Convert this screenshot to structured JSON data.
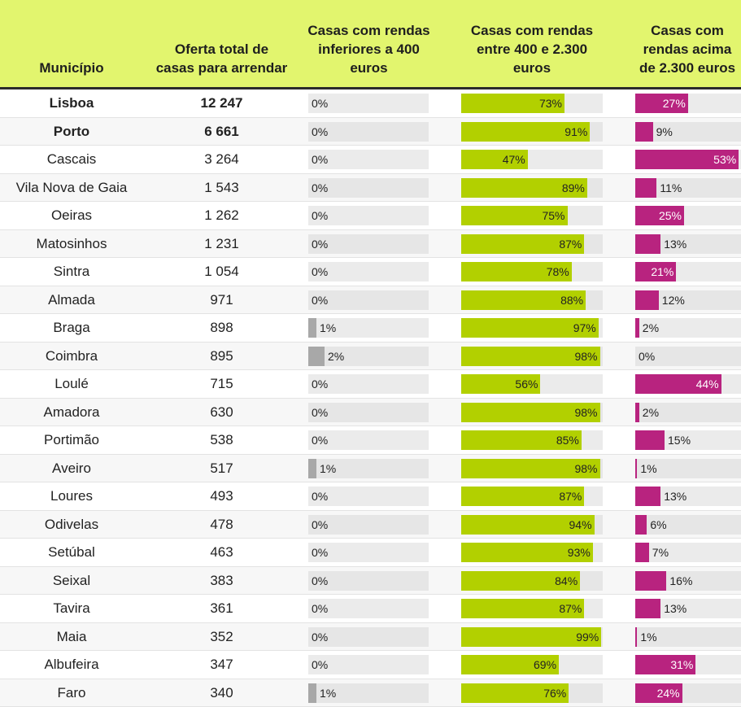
{
  "colors": {
    "header_bg": "#e2f56e",
    "low": "#a8a8a8",
    "mid": "#b2d000",
    "high": "#b8237f",
    "track": "#ebebeb"
  },
  "chart_data": {
    "type": "table",
    "title": "",
    "columns": [
      "Município",
      "Oferta total de casas para arrendar",
      "Casas com rendas inferiores a 400 euros",
      "Casas com rendas entre 400 e 2.300 euros",
      "Casas com rendas acima de 2.300 euros"
    ],
    "rows": [
      {
        "municipio": "Lisboa",
        "oferta": "12 247",
        "low": 0,
        "mid": 73,
        "high": 27,
        "bold": true
      },
      {
        "municipio": "Porto",
        "oferta": "6 661",
        "low": 0,
        "mid": 91,
        "high": 9,
        "bold": true
      },
      {
        "municipio": "Cascais",
        "oferta": "3 264",
        "low": 0,
        "mid": 47,
        "high": 53
      },
      {
        "municipio": "Vila Nova de Gaia",
        "oferta": "1 543",
        "low": 0,
        "mid": 89,
        "high": 11
      },
      {
        "municipio": "Oeiras",
        "oferta": "1 262",
        "low": 0,
        "mid": 75,
        "high": 25
      },
      {
        "municipio": "Matosinhos",
        "oferta": "1 231",
        "low": 0,
        "mid": 87,
        "high": 13
      },
      {
        "municipio": "Sintra",
        "oferta": "1 054",
        "low": 0,
        "mid": 78,
        "high": 21
      },
      {
        "municipio": "Almada",
        "oferta": "971",
        "low": 0,
        "mid": 88,
        "high": 12
      },
      {
        "municipio": "Braga",
        "oferta": "898",
        "low": 1,
        "mid": 97,
        "high": 2
      },
      {
        "municipio": "Coimbra",
        "oferta": "895",
        "low": 2,
        "mid": 98,
        "high": 0
      },
      {
        "municipio": "Loulé",
        "oferta": "715",
        "low": 0,
        "mid": 56,
        "high": 44
      },
      {
        "municipio": "Amadora",
        "oferta": "630",
        "low": 0,
        "mid": 98,
        "high": 2
      },
      {
        "municipio": "Portimão",
        "oferta": "538",
        "low": 0,
        "mid": 85,
        "high": 15
      },
      {
        "municipio": "Aveiro",
        "oferta": "517",
        "low": 1,
        "mid": 98,
        "high": 1
      },
      {
        "municipio": "Loures",
        "oferta": "493",
        "low": 0,
        "mid": 87,
        "high": 13
      },
      {
        "municipio": "Odivelas",
        "oferta": "478",
        "low": 0,
        "mid": 94,
        "high": 6
      },
      {
        "municipio": "Setúbal",
        "oferta": "463",
        "low": 0,
        "mid": 93,
        "high": 7
      },
      {
        "municipio": "Seixal",
        "oferta": "383",
        "low": 0,
        "mid": 84,
        "high": 16
      },
      {
        "municipio": "Tavira",
        "oferta": "361",
        "low": 0,
        "mid": 87,
        "high": 13
      },
      {
        "municipio": "Maia",
        "oferta": "352",
        "low": 0,
        "mid": 99,
        "high": 1
      },
      {
        "municipio": "Albufeira",
        "oferta": "347",
        "low": 0,
        "mid": 69,
        "high": 31
      },
      {
        "municipio": "Faro",
        "oferta": "340",
        "low": 1,
        "mid": 76,
        "high": 24
      }
    ],
    "value_unit": "%"
  }
}
